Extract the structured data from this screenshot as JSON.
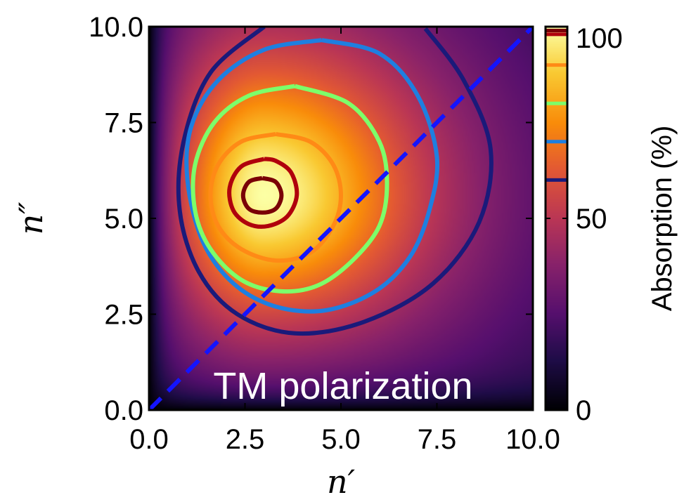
{
  "chart_data": {
    "type": "heatmap",
    "title": "",
    "xlabel": "n′",
    "ylabel": "n″",
    "xlim": [
      0,
      10
    ],
    "ylim": [
      0,
      10
    ],
    "xticks": [
      "0.0",
      "2.5",
      "5.0",
      "7.5",
      "10.0"
    ],
    "yticks": [
      "0.0",
      "2.5",
      "5.0",
      "7.5",
      "10.0"
    ],
    "annotation": "TM polarization",
    "colorbar": {
      "label": "Absorption (%)",
      "range": [
        0,
        100
      ],
      "ticks": [
        "0",
        "50",
        "100"
      ],
      "colormap": "inferno",
      "level_markers": [
        60,
        70,
        80,
        90,
        98,
        99
      ]
    },
    "peak": {
      "x": 3.0,
      "y": 5.6,
      "value": 100
    },
    "contours": [
      {
        "level": 60,
        "color": "#1a1a7a",
        "points": [
          [
            3.0,
            10.0
          ],
          [
            1.6,
            8.8
          ],
          [
            0.9,
            7.0
          ],
          [
            0.8,
            5.2
          ],
          [
            1.3,
            3.6
          ],
          [
            2.3,
            2.5
          ],
          [
            3.8,
            2.0
          ],
          [
            5.6,
            2.3
          ],
          [
            7.4,
            3.3
          ],
          [
            8.6,
            4.9
          ],
          [
            8.9,
            6.8
          ],
          [
            8.2,
            8.6
          ],
          [
            7.2,
            9.95
          ]
        ]
      },
      {
        "level": 70,
        "color": "#1e7fe0",
        "points": [
          [
            4.5,
            9.65
          ],
          [
            3.0,
            9.4
          ],
          [
            1.8,
            8.6
          ],
          [
            1.1,
            7.4
          ],
          [
            1.0,
            6.0
          ],
          [
            1.4,
            4.4
          ],
          [
            2.2,
            3.3
          ],
          [
            3.3,
            2.7
          ],
          [
            4.6,
            2.6
          ],
          [
            5.9,
            3.1
          ],
          [
            6.8,
            4.0
          ],
          [
            7.3,
            5.2
          ],
          [
            7.5,
            6.6
          ],
          [
            7.0,
            8.2
          ],
          [
            6.0,
            9.3
          ],
          [
            4.5,
            9.65
          ]
        ]
      },
      {
        "level": 80,
        "color": "#7dff6a",
        "points": [
          [
            3.8,
            8.45
          ],
          [
            2.6,
            8.2
          ],
          [
            1.7,
            7.5
          ],
          [
            1.2,
            6.4
          ],
          [
            1.2,
            5.2
          ],
          [
            1.6,
            4.2
          ],
          [
            2.4,
            3.4
          ],
          [
            3.4,
            3.1
          ],
          [
            4.4,
            3.25
          ],
          [
            5.3,
            3.9
          ],
          [
            6.0,
            4.8
          ],
          [
            6.2,
            5.9
          ],
          [
            6.0,
            7.0
          ],
          [
            5.2,
            8.0
          ],
          [
            3.8,
            8.45
          ]
        ]
      },
      {
        "level": 90,
        "color": "#ff8a16",
        "points": [
          [
            3.3,
            7.2
          ],
          [
            2.4,
            7.0
          ],
          [
            1.8,
            6.4
          ],
          [
            1.6,
            5.6
          ],
          [
            1.8,
            4.8
          ],
          [
            2.4,
            4.2
          ],
          [
            3.3,
            3.9
          ],
          [
            4.2,
            4.1
          ],
          [
            4.8,
            4.8
          ],
          [
            5.0,
            5.6
          ],
          [
            4.8,
            6.4
          ],
          [
            4.2,
            7.0
          ],
          [
            3.3,
            7.2
          ]
        ]
      },
      {
        "level": 98,
        "color": "#b0000c",
        "points": [
          [
            3.0,
            6.55
          ],
          [
            2.4,
            6.35
          ],
          [
            2.1,
            5.8
          ],
          [
            2.2,
            5.2
          ],
          [
            2.6,
            4.85
          ],
          [
            3.1,
            4.8
          ],
          [
            3.6,
            5.05
          ],
          [
            3.85,
            5.6
          ],
          [
            3.7,
            6.2
          ],
          [
            3.3,
            6.5
          ],
          [
            3.0,
            6.55
          ]
        ]
      },
      {
        "level": 99,
        "color": "#7a0006",
        "points": [
          [
            2.95,
            6.05
          ],
          [
            2.6,
            5.95
          ],
          [
            2.45,
            5.6
          ],
          [
            2.6,
            5.25
          ],
          [
            2.95,
            5.15
          ],
          [
            3.3,
            5.25
          ],
          [
            3.45,
            5.6
          ],
          [
            3.3,
            5.95
          ],
          [
            2.95,
            6.05
          ]
        ]
      }
    ],
    "diagonal": {
      "color": "#1414ff",
      "points": [
        [
          0,
          0
        ],
        [
          10,
          10
        ]
      ]
    }
  }
}
